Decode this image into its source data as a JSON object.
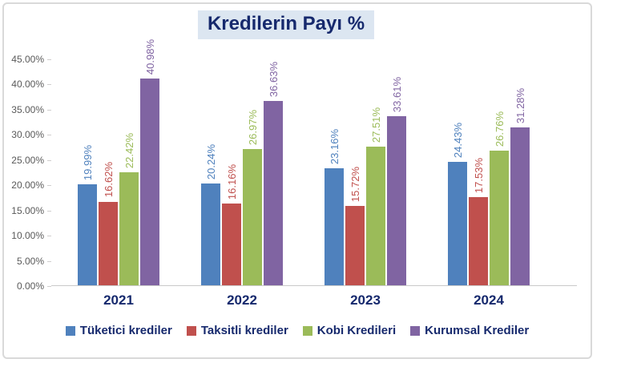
{
  "title": "Kredilerin Payı %",
  "colors": {
    "title_text": "#16296d",
    "title_background": "#dce6f1",
    "axis_text": "#595959",
    "frame_border": "#d9d9d9",
    "series_blue": "#4F81BD",
    "series_red": "#C0504D",
    "series_green": "#9BBB59",
    "series_purple": "#8064A2"
  },
  "chart_data": {
    "type": "bar",
    "title": "Kredilerin Payı %",
    "categories": [
      "2021",
      "2022",
      "2023",
      "2024"
    ],
    "series": [
      {
        "name": "Tüketici krediler",
        "color": "#4F81BD",
        "values": [
          19.99,
          20.24,
          23.16,
          24.43
        ],
        "labels": [
          "19.99%",
          "20.24%",
          "23.16%",
          "24.43%"
        ]
      },
      {
        "name": "Taksitli krediler",
        "color": "#C0504D",
        "values": [
          16.62,
          16.16,
          15.72,
          17.53
        ],
        "labels": [
          "16.62%",
          "16.16%",
          "15.72%",
          "17.53%"
        ]
      },
      {
        "name": "Kobi Kredileri",
        "color": "#9BBB59",
        "values": [
          22.42,
          26.97,
          27.51,
          26.76
        ],
        "labels": [
          "22.42%",
          "26.97%",
          "27.51%",
          "26.76%"
        ]
      },
      {
        "name": "Kurumsal Krediler",
        "color": "#8064A2",
        "values": [
          40.98,
          36.63,
          33.61,
          31.28
        ],
        "labels": [
          "40.98%",
          "36.63%",
          "33.61%",
          "31.28%"
        ]
      }
    ],
    "y_axis": {
      "min": 0,
      "max": 45,
      "step": 5,
      "tick_labels": [
        "45.00%",
        "40.00%",
        "35.00%",
        "30.00%",
        "25.00%",
        "20.00%",
        "15.00%",
        "10.00%",
        "5.00%",
        "0.00%"
      ]
    },
    "xlabel": "",
    "ylabel": "",
    "grid": false,
    "legend_position": "bottom",
    "value_label_rotation": 90
  }
}
